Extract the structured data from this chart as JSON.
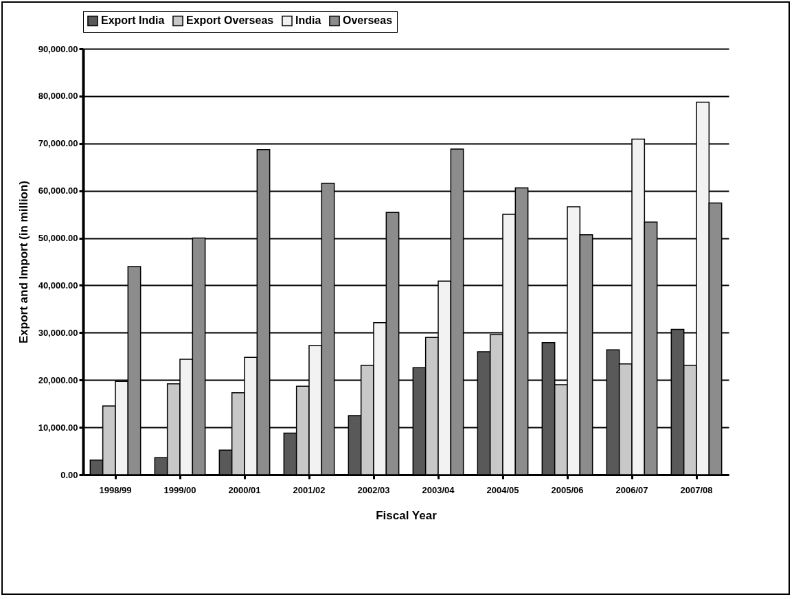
{
  "chart_data": {
    "type": "bar",
    "xlabel": "Fiscal Year",
    "ylabel": "Export and Import (in million)",
    "categories": [
      "1998/99",
      "1999/00",
      "2000/01",
      "2001/02",
      "2002/03",
      "2003/04",
      "2004/05",
      "2005/06",
      "2006/07",
      "2007/08"
    ],
    "series": [
      {
        "name": "Export India",
        "color": "#595959",
        "values": [
          3100,
          3600,
          5200,
          8800,
          12500,
          22600,
          26000,
          27900,
          26400,
          30700
        ]
      },
      {
        "name": "Export Overseas",
        "color": "#c8c8c8",
        "values": [
          14500,
          19200,
          17300,
          18700,
          23100,
          29000,
          29600,
          19000,
          23400,
          23100
        ]
      },
      {
        "name": "India",
        "color": "#f2f2f2",
        "values": [
          19700,
          24400,
          24800,
          27300,
          32100,
          40900,
          55000,
          56600,
          70900,
          78700
        ]
      },
      {
        "name": "Overseas",
        "color": "#8c8c8c",
        "values": [
          44000,
          50000,
          68700,
          61600,
          55400,
          68800,
          60600,
          50700,
          53400,
          57400
        ]
      }
    ],
    "ylim": [
      0,
      90000
    ],
    "yticks": [
      {
        "value": 0,
        "label": "0.00"
      },
      {
        "value": 10000,
        "label": "10,000.00"
      },
      {
        "value": 20000,
        "label": "20,000.00"
      },
      {
        "value": 30000,
        "label": "30,000.00"
      },
      {
        "value": 40000,
        "label": "40,000.00"
      },
      {
        "value": 50000,
        "label": "50,000.00"
      },
      {
        "value": 60000,
        "label": "60,000.00"
      },
      {
        "value": 70000,
        "label": "70,000.00"
      },
      {
        "value": 80000,
        "label": "80,000.00"
      },
      {
        "value": 90000,
        "label": "90,000.00"
      }
    ],
    "grid": "y",
    "legend": "top"
  }
}
